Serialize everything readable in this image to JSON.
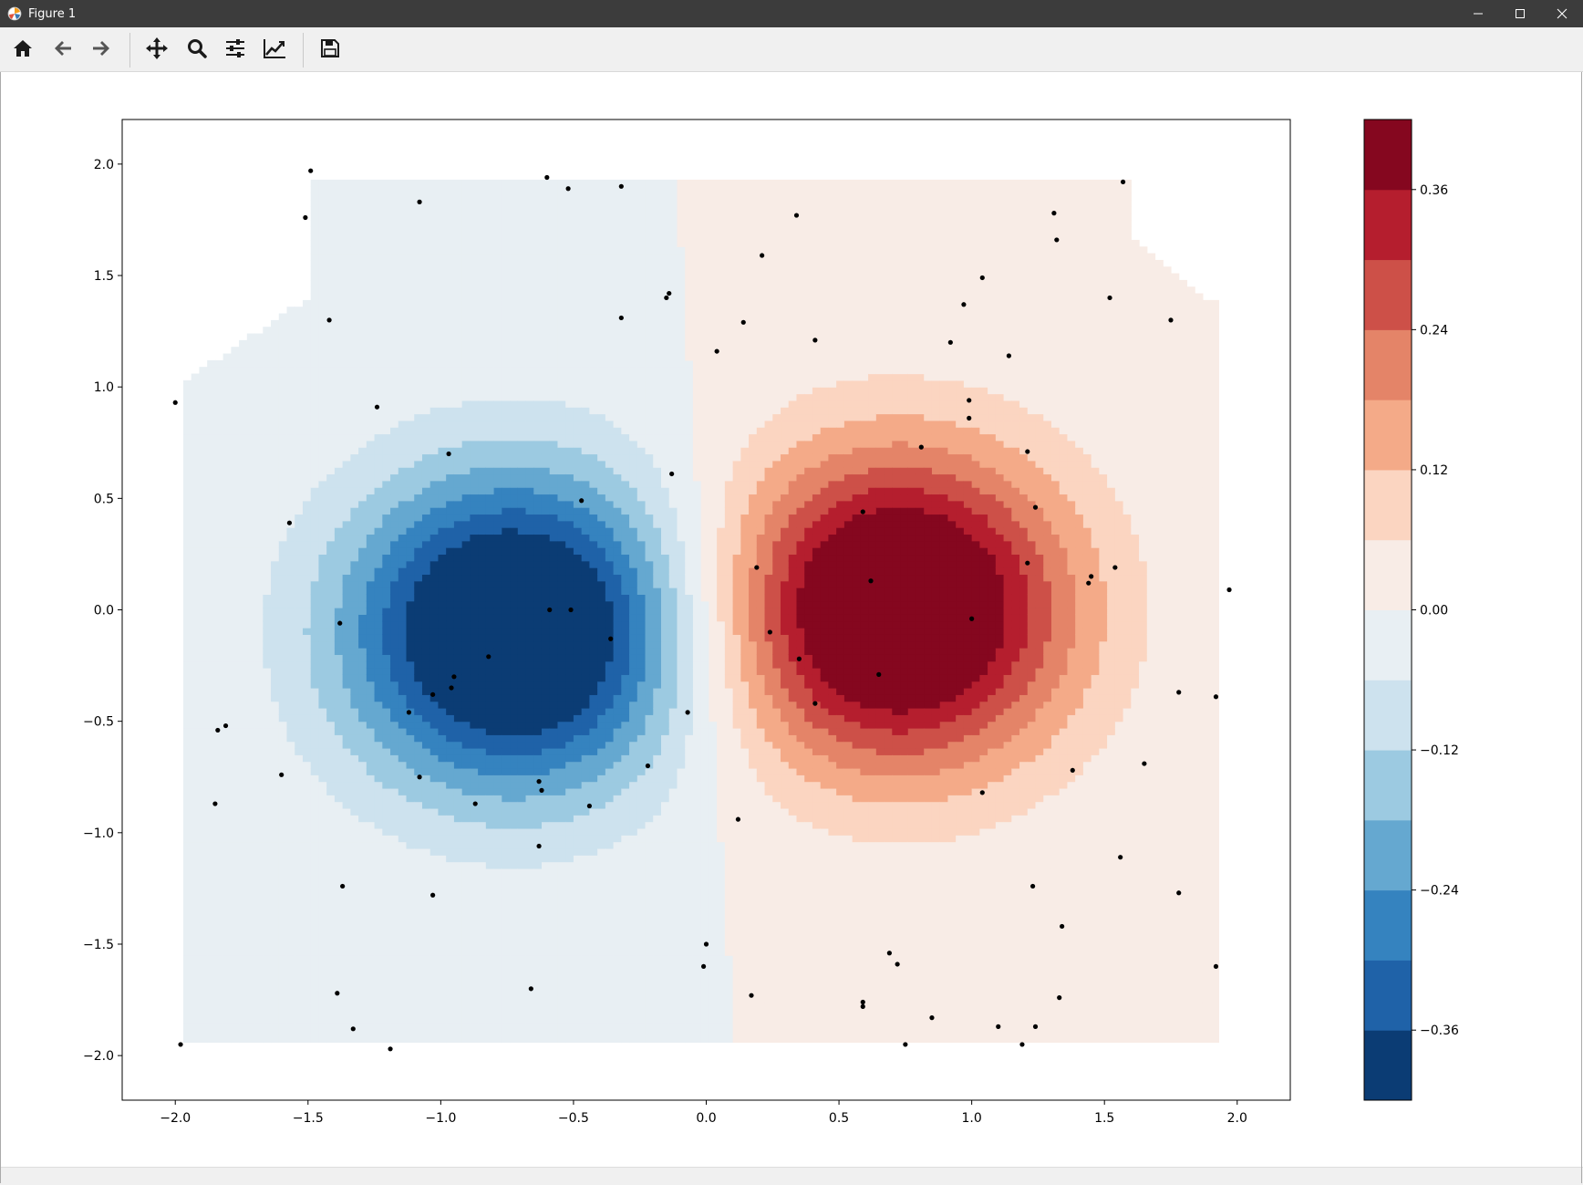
{
  "window": {
    "title": "Figure 1",
    "icons": {
      "minimize": "minimize-icon",
      "maximize": "maximize-icon",
      "close": "close-icon"
    }
  },
  "toolbar": {
    "buttons": [
      {
        "name": "home-button",
        "icon": "home-icon"
      },
      {
        "name": "back-button",
        "icon": "arrow-left-icon"
      },
      {
        "name": "forward-button",
        "icon": "arrow-right-icon"
      },
      {
        "name": "pan-button",
        "icon": "move-arrows-icon"
      },
      {
        "name": "zoom-button",
        "icon": "magnifier-icon"
      },
      {
        "name": "configure-subplots-button",
        "icon": "sliders-icon"
      },
      {
        "name": "edit-axis-button",
        "icon": "line-chart-icon"
      },
      {
        "name": "save-button",
        "icon": "floppy-disk-icon"
      }
    ]
  },
  "chart_data": {
    "type": "contour",
    "title": "",
    "xlabel": "",
    "ylabel": "",
    "xlim": [
      -2.2,
      2.2
    ],
    "ylim": [
      -2.2,
      2.2
    ],
    "xticks": [
      -2.0,
      -1.5,
      -1.0,
      -0.5,
      0.0,
      0.5,
      1.0,
      1.5,
      2.0
    ],
    "xtick_labels": [
      "−2.0",
      "−1.5",
      "−1.0",
      "−0.5",
      "0.0",
      "0.5",
      "1.0",
      "1.5",
      "2.0"
    ],
    "yticks": [
      -2.0,
      -1.5,
      -1.0,
      -0.5,
      0.0,
      0.5,
      1.0,
      1.5,
      2.0
    ],
    "ytick_labels": [
      "−2.0",
      "−1.5",
      "−1.0",
      "−0.5",
      "0.0",
      "0.5",
      "1.0",
      "1.5",
      "2.0"
    ],
    "grid": false,
    "colormap": "RdBu_r",
    "levels": [
      -0.42,
      -0.36,
      -0.3,
      -0.24,
      -0.18,
      -0.12,
      -0.06,
      0.0,
      0.06,
      0.12,
      0.18,
      0.24,
      0.3,
      0.36,
      0.42
    ],
    "level_colors": [
      "#0b3c74",
      "#1f62a8",
      "#3583bf",
      "#65a8d0",
      "#9ccae1",
      "#cde2ee",
      "#e8eff3",
      "#f8ece6",
      "#fbd5c1",
      "#f4aa88",
      "#e48468",
      "#cd5048",
      "#b51e2e",
      "#85071f"
    ],
    "field_sources": [
      {
        "x": -0.72,
        "y": -0.1,
        "sx": 0.45,
        "sy": 0.5,
        "amp": -0.55
      },
      {
        "x": 0.72,
        "y": 0.0,
        "sx": 0.45,
        "sy": 0.5,
        "amp": 0.55
      }
    ],
    "colorbar": {
      "ticks": [
        -0.36,
        -0.24,
        -0.12,
        0.0,
        0.12,
        0.24,
        0.36
      ],
      "tick_labels": [
        "−0.36",
        "−0.24",
        "−0.12",
        "0.00",
        "0.12",
        "0.24",
        "0.36"
      ],
      "range": [
        -0.42,
        0.42
      ]
    },
    "points": [
      [
        -1.49,
        1.97
      ],
      [
        -1.51,
        1.76
      ],
      [
        -1.08,
        1.83
      ],
      [
        -0.6,
        1.94
      ],
      [
        -0.52,
        1.89
      ],
      [
        -0.32,
        1.9
      ],
      [
        -2.0,
        0.93
      ],
      [
        -1.42,
        1.3
      ],
      [
        -1.24,
        0.91
      ],
      [
        -0.97,
        0.7
      ],
      [
        -1.57,
        0.39
      ],
      [
        -0.47,
        0.49
      ],
      [
        -0.32,
        1.31
      ],
      [
        -0.15,
        1.4
      ],
      [
        -0.14,
        1.42
      ],
      [
        -0.13,
        0.61
      ],
      [
        -1.38,
        -0.06
      ],
      [
        -0.59,
        0.0
      ],
      [
        -0.51,
        0.0
      ],
      [
        -0.36,
        -0.13
      ],
      [
        -0.82,
        -0.21
      ],
      [
        -0.95,
        -0.3
      ],
      [
        -0.96,
        -0.35
      ],
      [
        -1.03,
        -0.38
      ],
      [
        -1.12,
        -0.46
      ],
      [
        -1.84,
        -0.54
      ],
      [
        -1.81,
        -0.52
      ],
      [
        -1.6,
        -0.74
      ],
      [
        -1.85,
        -0.87
      ],
      [
        -1.08,
        -0.75
      ],
      [
        -0.87,
        -0.87
      ],
      [
        -0.63,
        -0.77
      ],
      [
        -0.62,
        -0.81
      ],
      [
        -0.44,
        -0.88
      ],
      [
        -0.22,
        -0.7
      ],
      [
        -0.07,
        -0.46
      ],
      [
        -0.63,
        -1.06
      ],
      [
        -1.37,
        -1.24
      ],
      [
        -1.03,
        -1.28
      ],
      [
        -1.39,
        -1.72
      ],
      [
        -1.33,
        -1.88
      ],
      [
        -1.19,
        -1.97
      ],
      [
        -1.98,
        -1.95
      ],
      [
        -0.66,
        -1.7
      ],
      [
        0.0,
        -1.5
      ],
      [
        -0.01,
        -1.6
      ],
      [
        0.34,
        1.77
      ],
      [
        0.21,
        1.59
      ],
      [
        0.04,
        1.16
      ],
      [
        0.14,
        1.29
      ],
      [
        0.41,
        1.21
      ],
      [
        0.97,
        1.37
      ],
      [
        1.04,
        1.49
      ],
      [
        0.92,
        1.2
      ],
      [
        1.14,
        1.14
      ],
      [
        1.31,
        1.78
      ],
      [
        1.32,
        1.66
      ],
      [
        1.52,
        1.4
      ],
      [
        1.57,
        1.92
      ],
      [
        1.75,
        1.3
      ],
      [
        0.81,
        0.73
      ],
      [
        0.99,
        0.94
      ],
      [
        0.99,
        0.86
      ],
      [
        1.21,
        0.71
      ],
      [
        1.24,
        0.46
      ],
      [
        0.59,
        0.44
      ],
      [
        0.19,
        0.19
      ],
      [
        0.62,
        0.13
      ],
      [
        1.21,
        0.21
      ],
      [
        1.45,
        0.15
      ],
      [
        1.44,
        0.12
      ],
      [
        1.54,
        0.19
      ],
      [
        1.97,
        0.09
      ],
      [
        0.24,
        -0.1
      ],
      [
        1.0,
        -0.04
      ],
      [
        0.35,
        -0.22
      ],
      [
        0.65,
        -0.29
      ],
      [
        0.41,
        -0.42
      ],
      [
        1.78,
        -0.37
      ],
      [
        1.92,
        -0.39
      ],
      [
        1.65,
        -0.69
      ],
      [
        1.38,
        -0.72
      ],
      [
        1.04,
        -0.82
      ],
      [
        1.56,
        -1.11
      ],
      [
        1.78,
        -1.27
      ],
      [
        0.12,
        -0.94
      ],
      [
        1.23,
        -1.24
      ],
      [
        1.34,
        -1.42
      ],
      [
        0.69,
        -1.54
      ],
      [
        0.72,
        -1.59
      ],
      [
        1.92,
        -1.6
      ],
      [
        0.17,
        -1.73
      ],
      [
        0.59,
        -1.76
      ],
      [
        0.59,
        -1.78
      ],
      [
        1.33,
        -1.74
      ],
      [
        0.85,
        -1.83
      ],
      [
        1.1,
        -1.87
      ],
      [
        1.24,
        -1.87
      ],
      [
        0.75,
        -1.95
      ],
      [
        1.19,
        -1.95
      ]
    ]
  }
}
